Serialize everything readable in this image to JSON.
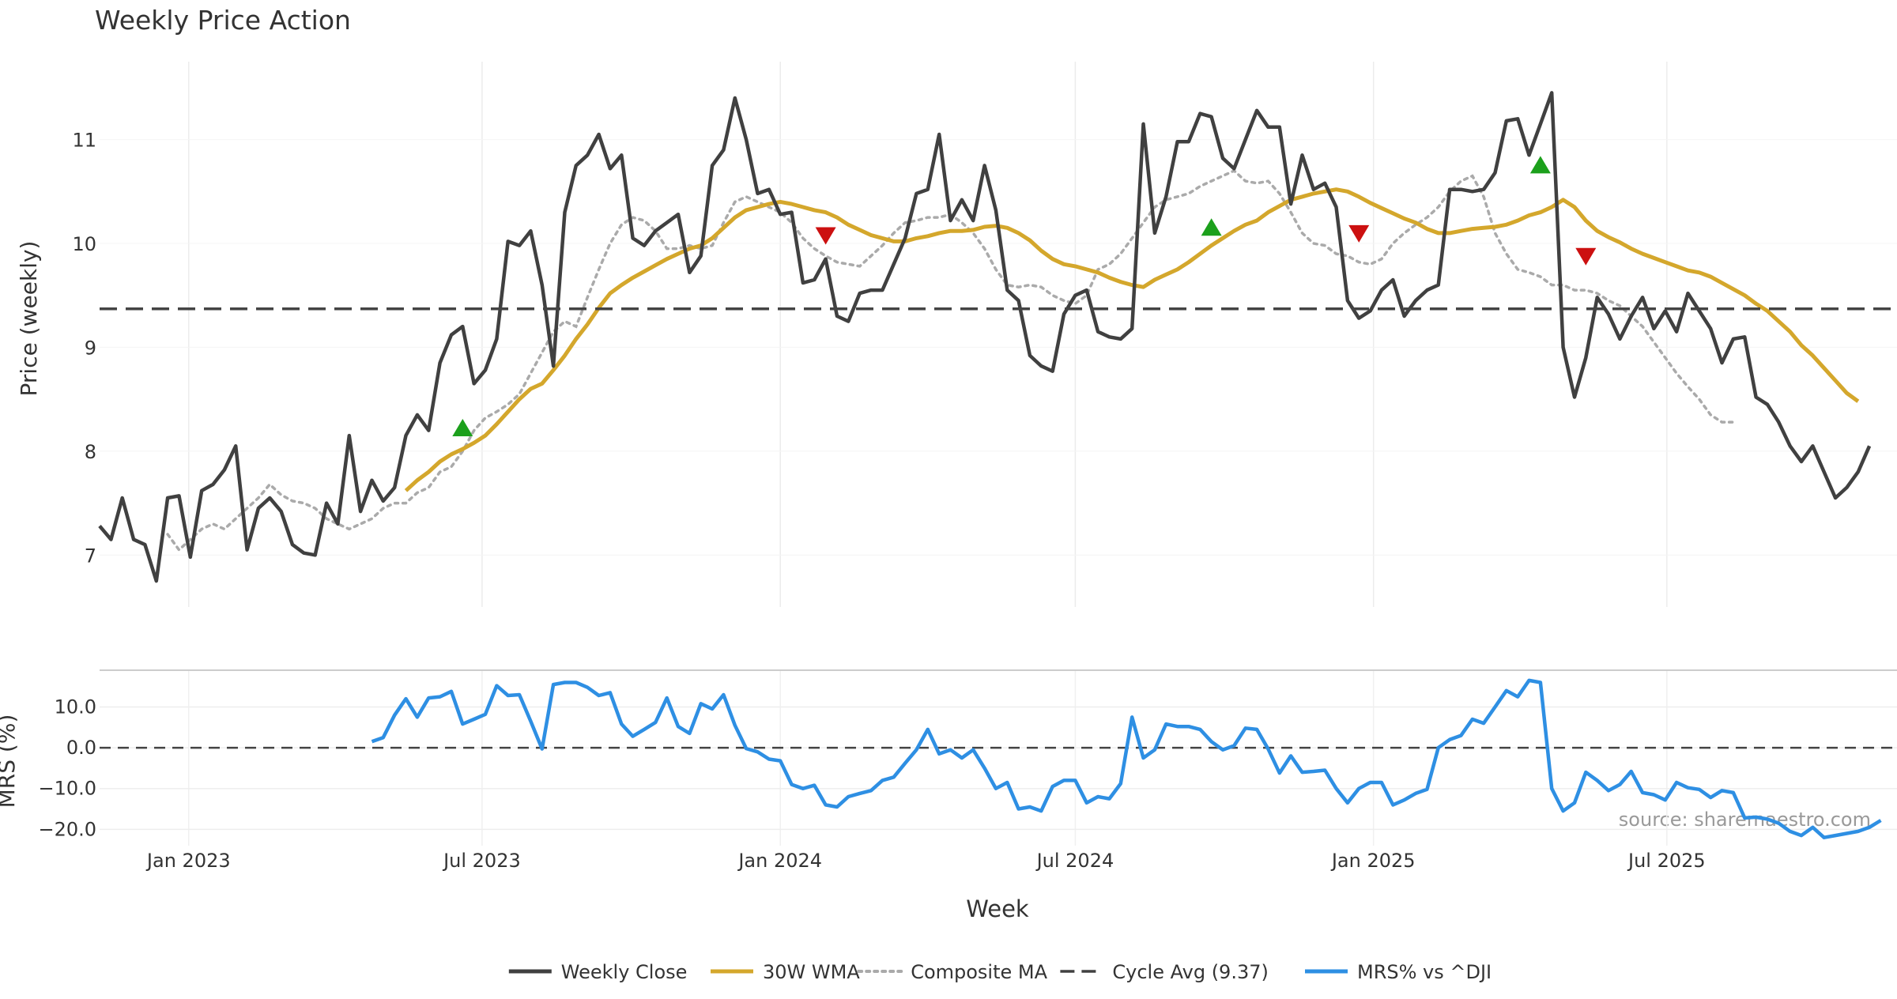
{
  "chart_data": [
    {
      "type": "line",
      "title": "Weekly Price Action",
      "xlabel": "",
      "ylabel": "Price (weekly)",
      "ylim": [
        6.5,
        11.75
      ],
      "yticks": [
        7,
        8,
        9,
        10,
        11
      ],
      "xlim": [
        "2022-11-07",
        "2025-11-20"
      ],
      "grid": true,
      "reference_line": {
        "name": "Cycle Avg",
        "value": 9.37
      },
      "series": [
        {
          "name": "Weekly Close",
          "color": "#404040",
          "x_start": "2022-11-07",
          "x_step_days": 7,
          "values": [
            7.28,
            7.15,
            7.55,
            7.15,
            7.1,
            6.75,
            7.55,
            7.57,
            6.98,
            7.62,
            7.68,
            7.82,
            8.05,
            7.05,
            7.45,
            7.55,
            7.42,
            7.1,
            7.02,
            7.0,
            7.5,
            7.3,
            8.15,
            7.42,
            7.72,
            7.52,
            7.65,
            8.15,
            8.35,
            8.2,
            8.85,
            9.12,
            9.2,
            8.65,
            8.78,
            9.08,
            10.02,
            9.98,
            10.12,
            9.6,
            8.82,
            10.3,
            10.75,
            10.85,
            11.05,
            10.72,
            10.85,
            10.05,
            9.98,
            10.12,
            10.2,
            10.28,
            9.72,
            9.88,
            10.75,
            10.9,
            11.4,
            11.0,
            10.48,
            10.52,
            10.28,
            10.3,
            9.62,
            9.65,
            9.85,
            9.3,
            9.25,
            9.52,
            9.55,
            9.55,
            9.8,
            10.05,
            10.48,
            10.52,
            11.05,
            10.22,
            10.42,
            10.22,
            10.75,
            10.32,
            9.55,
            9.45,
            8.92,
            8.82,
            8.77,
            9.32,
            9.5,
            9.55,
            9.15,
            9.1,
            9.08,
            9.18,
            11.15,
            10.1,
            10.45,
            10.98,
            10.98,
            11.25,
            11.22,
            10.82,
            10.72,
            11.0,
            11.28,
            11.12,
            11.12,
            10.38,
            10.85,
            10.52,
            10.58,
            10.35,
            9.45,
            9.28,
            9.35,
            9.55,
            9.65,
            9.3,
            9.45,
            9.55,
            9.6,
            10.52,
            10.52,
            10.5,
            10.52,
            10.68,
            11.18,
            11.2,
            10.85,
            11.15,
            11.45,
            9.0,
            8.52,
            8.9,
            9.48,
            9.32,
            9.08,
            9.3,
            9.48,
            9.18,
            9.35,
            9.15,
            9.52,
            9.35,
            9.18,
            8.85,
            9.08,
            9.1,
            8.52,
            8.45,
            8.28,
            8.05,
            7.9,
            8.05,
            7.8,
            7.55,
            7.65,
            7.8,
            8.05
          ]
        },
        {
          "name": "30W WMA",
          "color": "#d4a72c",
          "x_start": "2023-05-15",
          "x_step_days": 7,
          "values": [
            7.62,
            7.72,
            7.8,
            7.9,
            7.97,
            8.02,
            8.08,
            8.15,
            8.26,
            8.38,
            8.5,
            8.6,
            8.65,
            8.78,
            8.92,
            9.08,
            9.22,
            9.38,
            9.52,
            9.6,
            9.67,
            9.73,
            9.79,
            9.85,
            9.9,
            9.95,
            9.98,
            10.05,
            10.15,
            10.25,
            10.32,
            10.35,
            10.38,
            10.4,
            10.38,
            10.35,
            10.32,
            10.3,
            10.25,
            10.18,
            10.13,
            10.08,
            10.05,
            10.02,
            10.02,
            10.05,
            10.07,
            10.1,
            10.12,
            10.12,
            10.13,
            10.16,
            10.17,
            10.15,
            10.1,
            10.03,
            9.93,
            9.85,
            9.8,
            9.78,
            9.75,
            9.72,
            9.67,
            9.63,
            9.6,
            9.58,
            9.65,
            9.7,
            9.75,
            9.82,
            9.9,
            9.98,
            10.05,
            10.12,
            10.18,
            10.22,
            10.3,
            10.36,
            10.42,
            10.45,
            10.48,
            10.5,
            10.52,
            10.5,
            10.45,
            10.39,
            10.34,
            10.29,
            10.24,
            10.2,
            10.14,
            10.1,
            10.1,
            10.12,
            10.14,
            10.15,
            10.16,
            10.18,
            10.22,
            10.27,
            10.3,
            10.35,
            10.42,
            10.35,
            10.22,
            10.12,
            10.06,
            10.01,
            9.95,
            9.9,
            9.86,
            9.82,
            9.78,
            9.74,
            9.72,
            9.68,
            9.62,
            9.56,
            9.5,
            9.42,
            9.35,
            9.25,
            9.15,
            9.02,
            8.92,
            8.8,
            8.68,
            8.56,
            8.48
          ]
        },
        {
          "name": "Composite MA",
          "color": "#aaaaaa",
          "x_start": "2022-12-19",
          "x_step_days": 7,
          "values": [
            7.2,
            7.05,
            7.15,
            7.25,
            7.3,
            7.25,
            7.35,
            7.45,
            7.55,
            7.68,
            7.58,
            7.52,
            7.5,
            7.45,
            7.35,
            7.3,
            7.25,
            7.3,
            7.35,
            7.45,
            7.5,
            7.5,
            7.6,
            7.65,
            7.8,
            7.85,
            8.0,
            8.2,
            8.32,
            8.38,
            8.45,
            8.55,
            8.75,
            8.95,
            9.15,
            9.25,
            9.2,
            9.48,
            9.75,
            10.0,
            10.18,
            10.25,
            10.22,
            10.12,
            9.95,
            9.95,
            9.98,
            9.95,
            9.98,
            10.2,
            10.4,
            10.45,
            10.4,
            10.35,
            10.3,
            10.2,
            10.05,
            9.95,
            9.88,
            9.82,
            9.8,
            9.78,
            9.88,
            9.98,
            10.1,
            10.2,
            10.22,
            10.25,
            10.25,
            10.28,
            10.2,
            10.1,
            9.95,
            9.75,
            9.6,
            9.58,
            9.6,
            9.58,
            9.5,
            9.45,
            9.42,
            9.5,
            9.75,
            9.8,
            9.9,
            10.05,
            10.2,
            10.35,
            10.42,
            10.45,
            10.48,
            10.55,
            10.6,
            10.65,
            10.7,
            10.6,
            10.58,
            10.6,
            10.48,
            10.3,
            10.1,
            10.0,
            9.98,
            9.9,
            9.88,
            9.82,
            9.8,
            9.85,
            10.0,
            10.1,
            10.18,
            10.25,
            10.35,
            10.5,
            10.6,
            10.65,
            10.45,
            10.1,
            9.9,
            9.75,
            9.72,
            9.68,
            9.6,
            9.6,
            9.55,
            9.55,
            9.52,
            9.45,
            9.4,
            9.3,
            9.2,
            9.05,
            8.9,
            8.75,
            8.62,
            8.5,
            8.35,
            8.28,
            8.28
          ]
        }
      ],
      "signals": [
        {
          "type": "buy",
          "date": "2023-06-19",
          "value": 8.22,
          "color": "#1ca01c"
        },
        {
          "type": "sell",
          "date": "2024-01-29",
          "value": 10.08,
          "color": "#cc1010"
        },
        {
          "type": "buy",
          "date": "2024-09-23",
          "value": 10.15,
          "color": "#1ca01c"
        },
        {
          "type": "sell",
          "date": "2024-12-23",
          "value": 10.1,
          "color": "#cc1010"
        },
        {
          "type": "buy",
          "date": "2025-04-14",
          "value": 10.75,
          "color": "#1ca01c"
        },
        {
          "type": "sell",
          "date": "2025-05-12",
          "value": 9.88,
          "color": "#cc1010"
        }
      ]
    },
    {
      "type": "line",
      "title": "",
      "xlabel": "Week",
      "ylabel": "MRS (%)",
      "ylim": [
        -24,
        19
      ],
      "yticks": [
        10.0,
        0.0,
        -10.0,
        -20.0
      ],
      "ytick_labels": [
        "10.0",
        "0.0",
        "−10.0",
        "−20.0"
      ],
      "xticks": [
        {
          "label": "Jan 2023",
          "date": "2023-01-01"
        },
        {
          "label": "Jul 2023",
          "date": "2023-07-01"
        },
        {
          "label": "Jan 2024",
          "date": "2024-01-01"
        },
        {
          "label": "Jul 2024",
          "date": "2024-07-01"
        },
        {
          "label": "Jan 2025",
          "date": "2025-01-01"
        },
        {
          "label": "Jul 2025",
          "date": "2025-07-01"
        }
      ],
      "reference_line": {
        "value": 0
      },
      "annotation": "source: sharemaestro.com",
      "series": [
        {
          "name": "MRS% vs ^DJI",
          "color": "#2e8fe3",
          "x_start": "2023-04-24",
          "x_step_days": 7,
          "values": [
            1.5,
            2.5,
            8.0,
            12.0,
            7.5,
            12.2,
            12.5,
            13.8,
            5.8,
            7.0,
            8.2,
            15.2,
            12.8,
            13.0,
            6.5,
            -0.3,
            15.5,
            16.0,
            16.0,
            14.8,
            12.8,
            13.5,
            5.8,
            2.8,
            4.5,
            6.2,
            12.2,
            5.2,
            3.5,
            10.8,
            9.5,
            13.0,
            5.5,
            -0.2,
            -1.0,
            -2.8,
            -3.2,
            -9.0,
            -10.0,
            -9.2,
            -14.0,
            -14.5,
            -12.0,
            -11.2,
            -10.5,
            -8.0,
            -7.2,
            -3.8,
            -0.5,
            4.5,
            -1.5,
            -0.5,
            -2.5,
            -0.5,
            -5.0,
            -10.0,
            -8.5,
            -15.0,
            -14.5,
            -15.5,
            -9.5,
            -8.0,
            -8.0,
            -13.5,
            -12.0,
            -12.5,
            -8.8,
            7.5,
            -2.5,
            -0.5,
            5.8,
            5.2,
            5.2,
            4.5,
            1.5,
            -0.5,
            0.5,
            4.8,
            4.5,
            -0.3,
            -6.2,
            -2.0,
            -6.0,
            -5.8,
            -5.5,
            -10.0,
            -13.5,
            -10.0,
            -8.5,
            -8.5,
            -14.0,
            -12.8,
            -11.2,
            -10.2,
            0.0,
            2.0,
            3.0,
            7.0,
            6.0,
            10.0,
            14.0,
            12.5,
            16.5,
            16.0,
            -10.0,
            -15.5,
            -13.5,
            -6.0,
            -8.0,
            -10.5,
            -9.0,
            -5.8,
            -11.0,
            -11.5,
            -12.8,
            -8.5,
            -9.8,
            -10.2,
            -12.2,
            -10.5,
            -11.0,
            -17.2,
            -17.0,
            -17.5,
            -18.5,
            -20.5,
            -21.5,
            -19.5,
            -22.0,
            -21.5,
            -21.0,
            -20.5,
            -19.5,
            -17.8
          ]
        }
      ]
    }
  ],
  "legend": {
    "placement": "bottom-center",
    "items": [
      {
        "label": "Weekly Close",
        "color": "#404040",
        "style": "solid"
      },
      {
        "label": "30W WMA",
        "color": "#d4a72c",
        "style": "solid"
      },
      {
        "label": "Composite MA",
        "color": "#aaaaaa",
        "style": "dotted"
      },
      {
        "label": "Cycle Avg (9.37)",
        "color": "#404040",
        "style": "dashed"
      },
      {
        "label": "MRS% vs ^DJI",
        "color": "#2e8fe3",
        "style": "solid"
      }
    ]
  }
}
